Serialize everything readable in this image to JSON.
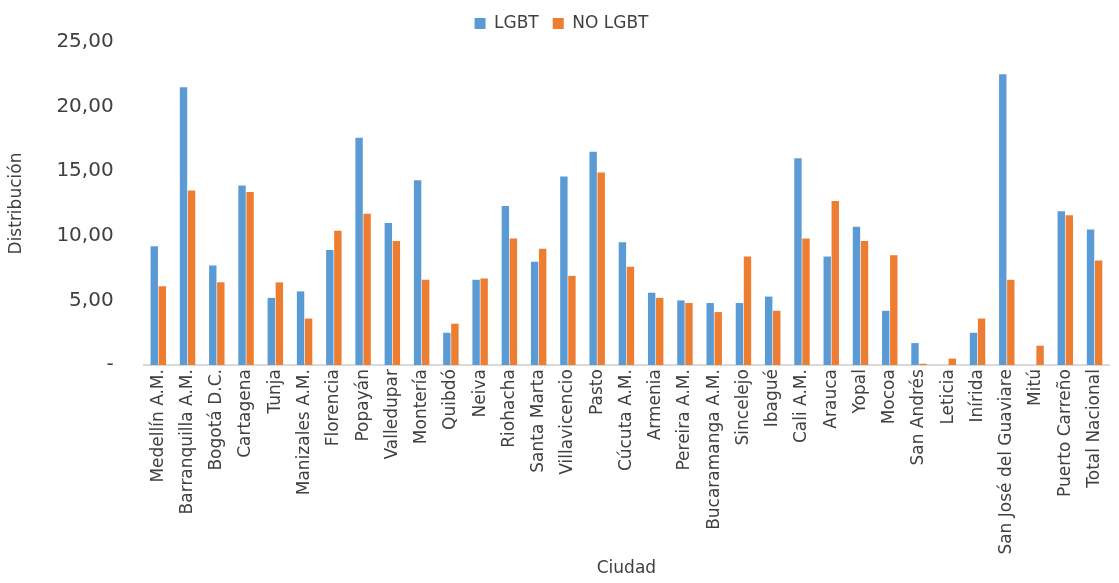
{
  "chart_data": {
    "type": "bar",
    "xlabel": "Ciudad",
    "ylabel": "Distribución",
    "legend": "top",
    "grid": false,
    "categories": [
      "Medellín A.M.",
      "Barranquilla A.M.",
      "Bogotá D.C.",
      "Cartagena",
      "Tunja",
      "Manizales A.M.",
      "Florencia",
      "Popayán",
      "Valledupar",
      "Montería",
      "Quibdó",
      "Neiva",
      "Riohacha",
      "Santa Marta",
      "Villavicencio",
      "Pasto",
      "Cúcuta A.M.",
      "Armenia",
      "Pereira A.M.",
      "Bucaramanga A.M.",
      "Sincelejo",
      "Ibagué",
      "Cali A.M.",
      "Arauca",
      "Yopal",
      "Mocoa",
      "San Andrés",
      "Leticia",
      "Inírida",
      "San José del Guaviare",
      "Mitú",
      "Puerto Carreño",
      "Total Nacional"
    ],
    "ylim": [
      0,
      25
    ],
    "yticks": [
      {
        "value": 0,
        "label": "-"
      },
      {
        "value": 5,
        "label": "5,00"
      },
      {
        "value": 10,
        "label": "10,00"
      },
      {
        "value": 15,
        "label": "15,00"
      },
      {
        "value": 20,
        "label": "20,00"
      },
      {
        "value": 25,
        "label": "25,00"
      }
    ],
    "series": [
      {
        "name": "LGBT",
        "color": "#5b9bd5",
        "values": [
          9.2,
          21.5,
          7.7,
          13.9,
          5.2,
          5.7,
          8.9,
          17.6,
          11.0,
          14.3,
          2.5,
          6.6,
          12.3,
          8.0,
          14.6,
          16.5,
          9.5,
          5.6,
          5.0,
          4.8,
          4.8,
          5.3,
          16.0,
          8.4,
          10.7,
          4.2,
          1.7,
          0,
          2.5,
          22.5,
          0,
          11.9,
          10.5
        ]
      },
      {
        "name": "NO LGBT",
        "color": "#ed7d31",
        "values": [
          6.1,
          13.5,
          6.4,
          13.4,
          6.4,
          3.6,
          10.4,
          11.7,
          9.6,
          6.6,
          3.2,
          6.7,
          9.8,
          9.0,
          6.9,
          14.9,
          7.6,
          5.2,
          4.8,
          4.1,
          8.4,
          4.2,
          9.8,
          12.7,
          9.6,
          8.5,
          0.1,
          0.5,
          3.6,
          6.6,
          1.5,
          11.6,
          8.1
        ]
      }
    ]
  }
}
